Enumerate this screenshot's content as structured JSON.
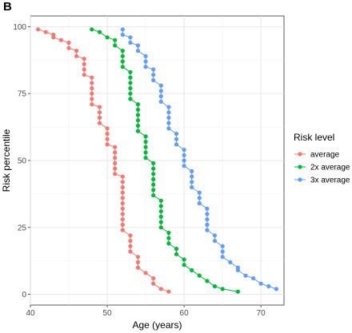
{
  "panel_label": "B",
  "chart_data": {
    "type": "line",
    "xlabel": "Age (years)",
    "ylabel": "Risk percentile",
    "xlim": [
      40,
      73
    ],
    "ylim": [
      -4,
      104
    ],
    "x_ticks": [
      40,
      50,
      60,
      70
    ],
    "y_ticks": [
      0,
      25,
      50,
      75,
      100
    ],
    "grid": true,
    "legend_position": "right",
    "legend_title": "Risk level",
    "series": [
      {
        "name": "average",
        "color": "#F8766D",
        "points": [
          [
            41,
            99
          ],
          [
            42,
            98
          ],
          [
            43,
            97
          ],
          [
            43,
            96
          ],
          [
            44,
            95
          ],
          [
            45,
            94
          ],
          [
            45,
            92
          ],
          [
            46,
            91
          ],
          [
            46,
            89
          ],
          [
            47,
            88
          ],
          [
            47,
            86
          ],
          [
            47,
            84
          ],
          [
            47,
            82
          ],
          [
            48,
            81
          ],
          [
            48,
            79
          ],
          [
            48,
            77
          ],
          [
            48,
            75
          ],
          [
            48,
            73
          ],
          [
            48,
            71
          ],
          [
            49,
            70
          ],
          [
            49,
            68
          ],
          [
            49,
            66
          ],
          [
            49,
            64
          ],
          [
            50,
            62
          ],
          [
            50,
            60
          ],
          [
            50,
            58
          ],
          [
            50,
            56
          ],
          [
            51,
            55
          ],
          [
            51,
            53
          ],
          [
            51,
            51
          ],
          [
            51,
            49
          ],
          [
            51,
            47
          ],
          [
            51,
            45
          ],
          [
            52,
            44
          ],
          [
            52,
            42
          ],
          [
            52,
            40
          ],
          [
            52,
            38
          ],
          [
            52,
            36
          ],
          [
            52,
            34
          ],
          [
            52,
            32
          ],
          [
            52,
            30
          ],
          [
            52,
            28
          ],
          [
            52,
            26
          ],
          [
            52,
            24
          ],
          [
            53,
            22
          ],
          [
            53,
            20
          ],
          [
            53,
            18
          ],
          [
            53,
            16
          ],
          [
            54,
            14
          ],
          [
            54,
            12
          ],
          [
            54,
            10
          ],
          [
            55,
            8
          ],
          [
            56,
            6
          ],
          [
            56,
            4
          ],
          [
            57,
            2
          ],
          [
            58,
            1
          ]
        ]
      },
      {
        "name": "2x average",
        "color": "#00BA38",
        "points": [
          [
            48,
            99
          ],
          [
            49,
            98
          ],
          [
            50,
            96
          ],
          [
            51,
            95
          ],
          [
            51,
            93
          ],
          [
            52,
            91
          ],
          [
            52,
            89
          ],
          [
            52,
            87
          ],
          [
            52,
            85
          ],
          [
            53,
            83
          ],
          [
            53,
            81
          ],
          [
            53,
            79
          ],
          [
            53,
            77
          ],
          [
            53,
            75
          ],
          [
            53,
            73
          ],
          [
            54,
            71
          ],
          [
            54,
            69
          ],
          [
            54,
            67
          ],
          [
            54,
            65
          ],
          [
            54,
            63
          ],
          [
            54,
            61
          ],
          [
            55,
            59
          ],
          [
            55,
            57
          ],
          [
            55,
            55
          ],
          [
            55,
            53
          ],
          [
            55,
            51
          ],
          [
            56,
            49
          ],
          [
            56,
            47
          ],
          [
            56,
            45
          ],
          [
            56,
            43
          ],
          [
            56,
            41
          ],
          [
            56,
            39
          ],
          [
            56,
            37
          ],
          [
            57,
            35
          ],
          [
            57,
            33
          ],
          [
            57,
            31
          ],
          [
            57,
            29
          ],
          [
            57,
            27
          ],
          [
            57,
            25
          ],
          [
            58,
            23
          ],
          [
            58,
            21
          ],
          [
            58,
            19
          ],
          [
            59,
            17
          ],
          [
            59,
            15
          ],
          [
            60,
            13
          ],
          [
            60,
            11
          ],
          [
            61,
            9
          ],
          [
            62,
            7
          ],
          [
            63,
            5
          ],
          [
            64,
            3
          ],
          [
            65,
            2
          ],
          [
            67,
            1
          ]
        ]
      },
      {
        "name": "3x average",
        "color": "#619CFF",
        "points": [
          [
            52,
            99
          ],
          [
            52,
            97
          ],
          [
            53,
            96
          ],
          [
            53,
            94
          ],
          [
            54,
            93
          ],
          [
            54,
            91
          ],
          [
            55,
            89
          ],
          [
            55,
            87
          ],
          [
            55,
            85
          ],
          [
            56,
            84
          ],
          [
            56,
            82
          ],
          [
            56,
            80
          ],
          [
            57,
            78
          ],
          [
            57,
            76
          ],
          [
            57,
            74
          ],
          [
            57,
            72
          ],
          [
            58,
            70
          ],
          [
            58,
            68
          ],
          [
            58,
            66
          ],
          [
            58,
            64
          ],
          [
            58,
            62
          ],
          [
            59,
            60
          ],
          [
            59,
            58
          ],
          [
            59,
            56
          ],
          [
            60,
            54
          ],
          [
            60,
            52
          ],
          [
            60,
            50
          ],
          [
            60,
            48
          ],
          [
            61,
            46
          ],
          [
            61,
            44
          ],
          [
            61,
            42
          ],
          [
            61,
            40
          ],
          [
            62,
            38
          ],
          [
            62,
            36
          ],
          [
            62,
            34
          ],
          [
            63,
            32
          ],
          [
            63,
            30
          ],
          [
            63,
            28
          ],
          [
            63,
            26
          ],
          [
            63,
            24
          ],
          [
            64,
            22
          ],
          [
            64,
            20
          ],
          [
            65,
            18
          ],
          [
            65,
            16
          ],
          [
            65,
            14
          ],
          [
            66,
            12
          ],
          [
            67,
            10
          ],
          [
            67,
            9
          ],
          [
            68,
            7
          ],
          [
            69,
            6
          ],
          [
            70,
            4
          ],
          [
            71,
            3
          ],
          [
            72,
            2
          ]
        ]
      }
    ]
  }
}
